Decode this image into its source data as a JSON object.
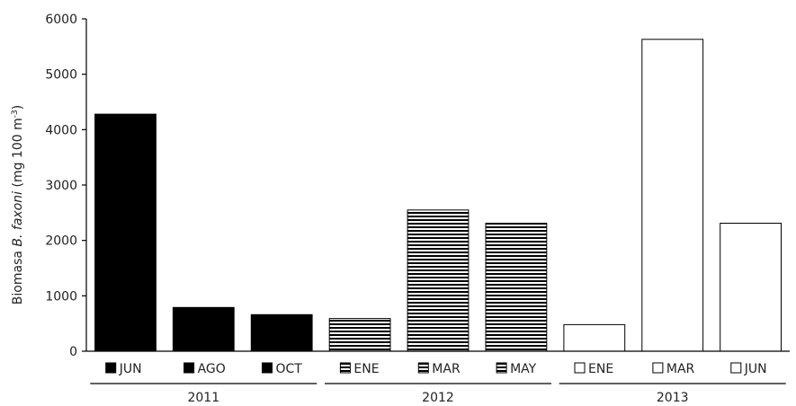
{
  "chart_data": {
    "type": "bar",
    "ylabel": {
      "prefix": "Biomasa ",
      "species": "B. faxoni",
      "unit_open": " (mg 100 m",
      "unit_sup": "-3",
      "unit_close": ")"
    },
    "ylim": [
      0,
      6000
    ],
    "yticks": [
      "0",
      "1000",
      "2000",
      "3000",
      "4000",
      "5000",
      "6000"
    ],
    "grid": false,
    "groups": [
      {
        "year": "2011",
        "style": "solid"
      },
      {
        "year": "2012",
        "style": "striped"
      },
      {
        "year": "2013",
        "style": "open"
      }
    ],
    "bars": [
      {
        "label": "JUN",
        "year": "2011",
        "value": 4280
      },
      {
        "label": "AGO",
        "year": "2011",
        "value": 790
      },
      {
        "label": "OCT",
        "year": "2011",
        "value": 660
      },
      {
        "label": "ENE",
        "year": "2012",
        "value": 590
      },
      {
        "label": "MAR",
        "year": "2012",
        "value": 2550
      },
      {
        "label": "MAY",
        "year": "2012",
        "value": 2310
      },
      {
        "label": "ENE",
        "year": "2013",
        "value": 480
      },
      {
        "label": "MAR",
        "year": "2013",
        "value": 5630
      },
      {
        "label": "JUN",
        "year": "2013",
        "value": 2310
      }
    ],
    "colors": {
      "solid": "#000000",
      "line": "#000000",
      "open": "#ffffff"
    }
  }
}
